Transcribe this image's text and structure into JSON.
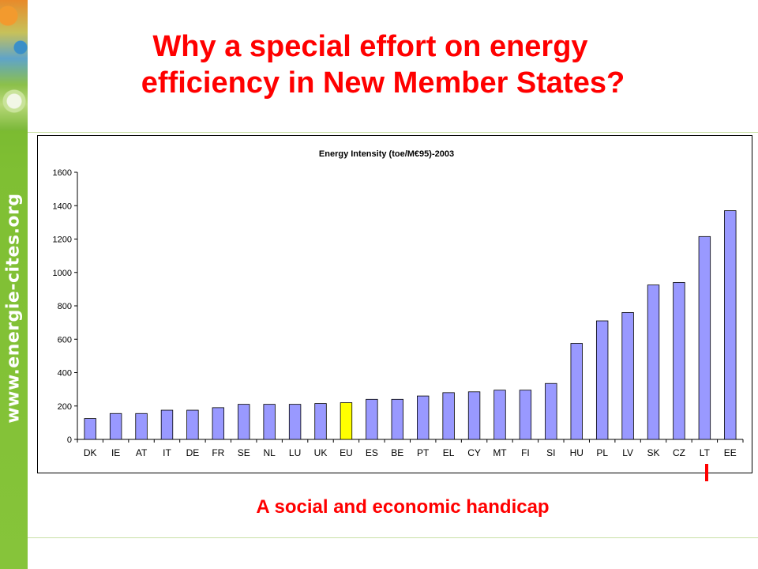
{
  "sidebar": {
    "url": "www.energie-cites.org"
  },
  "slide": {
    "title_line1": "Why a special effort on energy",
    "title_line2": "efficiency in New Member States?",
    "caption": "A social and economic handicap"
  },
  "colors": {
    "bar": "#9999ff",
    "highlight_bar": "#ffff00",
    "title": "#ff0000",
    "sidebar": "#7fbf33"
  },
  "chart_data": {
    "type": "bar",
    "title": "Energy Intensity (toe/M€95)-2003",
    "xlabel": "",
    "ylabel": "",
    "ylim": [
      0,
      1600
    ],
    "yticks": [
      0,
      200,
      400,
      600,
      800,
      1000,
      1200,
      1400,
      1600
    ],
    "grid": false,
    "legend": "none",
    "categories": [
      "DK",
      "IE",
      "AT",
      "IT",
      "DE",
      "FR",
      "SE",
      "NL",
      "LU",
      "UK",
      "EU",
      "ES",
      "BE",
      "PT",
      "EL",
      "CY",
      "MT",
      "FI",
      "SI",
      "HU",
      "PL",
      "LV",
      "SK",
      "CZ",
      "LT",
      "EE"
    ],
    "values": [
      125,
      155,
      155,
      175,
      175,
      190,
      210,
      210,
      210,
      215,
      220,
      240,
      240,
      260,
      280,
      285,
      295,
      295,
      335,
      575,
      710,
      760,
      925,
      940,
      1215,
      1370
    ],
    "highlight_category": "EU"
  }
}
